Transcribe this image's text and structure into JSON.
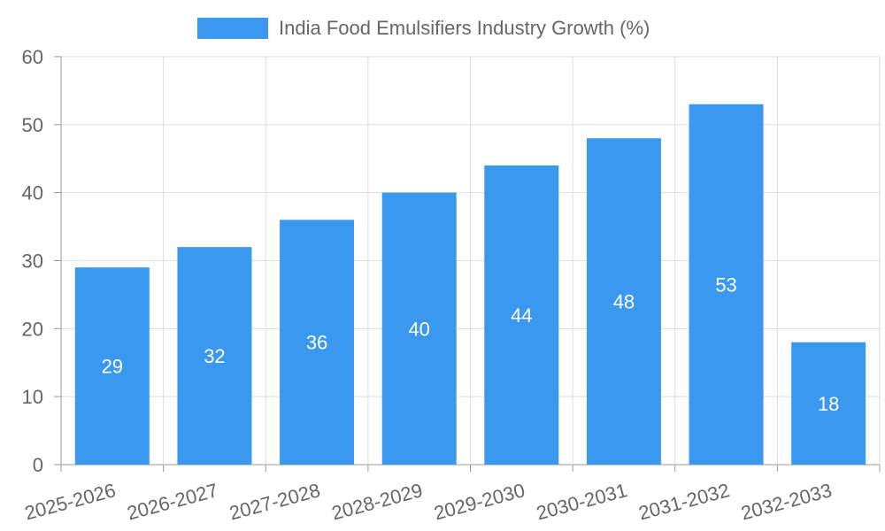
{
  "chart_data": {
    "type": "bar",
    "categories": [
      "2025-2026",
      "2026-2027",
      "2027-2028",
      "2028-2029",
      "2029-2030",
      "2030-2031",
      "2031-2032",
      "2032-2033"
    ],
    "series": [
      {
        "name": "India Food Emulsifiers Industry Growth (%)",
        "values": [
          29,
          32,
          36,
          40,
          44,
          48,
          53,
          18
        ],
        "color": "#3a99ee"
      }
    ],
    "ylim": [
      0,
      60
    ],
    "yticks": [
      0,
      10,
      20,
      30,
      40,
      50,
      60
    ],
    "grid": true,
    "legend_position": "top-center",
    "data_labels": true
  }
}
